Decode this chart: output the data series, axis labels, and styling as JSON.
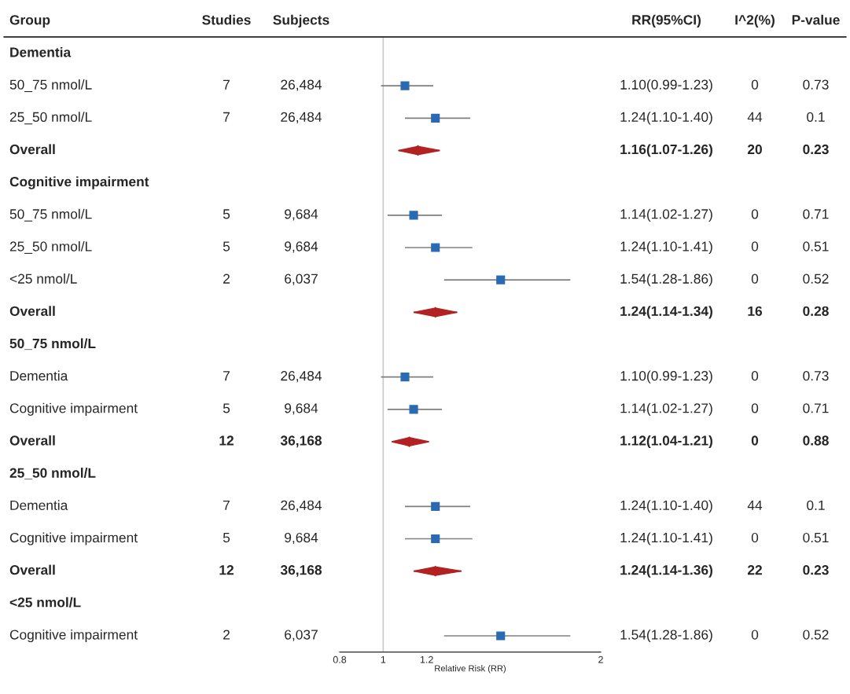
{
  "chart_data": [
    {
      "type": "other",
      "title": "Group",
      "categories": [
        "Dementia",
        "50_75 nmol/L",
        "25_50 nmol/L",
        "Overall",
        "Cognitive impairment",
        "50_75 nmol/L",
        "25_50 nmol/L",
        "<25 nmol/L",
        "Overall",
        "50_75 nmol/L",
        "Dementia",
        "Cognitive impairment",
        "Overall",
        "25_50 nmol/L",
        "Dementia",
        "Cognitive impairment",
        "Overall",
        "<25 nmol/L",
        "Cognitive impairment"
      ]
    },
    {
      "type": "other",
      "title": "Studies",
      "categories": [
        null,
        "7",
        "7",
        null,
        null,
        "5",
        "5",
        "2",
        null,
        null,
        "7",
        "5",
        "12",
        null,
        "7",
        "5",
        "12",
        null,
        "2"
      ]
    },
    {
      "type": "other",
      "title": "Subjects",
      "categories": [
        null,
        "26,484",
        "26,484",
        null,
        null,
        "9,684",
        "9,684",
        "6,037",
        null,
        null,
        "26,484",
        "9,684",
        "36,168",
        null,
        "26,484",
        "9,684",
        "36,168",
        null,
        "6,037"
      ]
    },
    {
      "type": "scatter",
      "orientation": "horizontal",
      "categories": [
        null,
        null,
        null,
        null,
        null,
        null,
        null,
        null,
        null,
        null,
        null,
        null,
        null,
        null,
        null,
        null,
        null,
        null,
        null
      ],
      "xlim": [
        0.8,
        2
      ],
      "xticks": [
        0.8,
        1,
        1.2,
        2
      ],
      "xlabel": "Relative Risk (RR)",
      "tick_labels": "x",
      "grid": false,
      "legend": false,
      "ref_lines": [
        {
          "axis": "x",
          "value": 1,
          "color": "#c8c8c8"
        }
      ],
      "series": [
        {
          "color": "#2a6ab3",
          "marker": "square",
          "values": [
            null,
            1.1,
            1.24,
            null,
            null,
            1.14,
            1.24,
            1.54,
            null,
            null,
            1.1,
            1.14,
            null,
            null,
            1.24,
            1.24,
            null,
            null,
            1.54
          ],
          "errors": [
            null,
            [
              0.99,
              1.23
            ],
            [
              1.1,
              1.4
            ],
            null,
            null,
            [
              1.02,
              1.27
            ],
            [
              1.1,
              1.41
            ],
            [
              1.28,
              1.86
            ],
            null,
            null,
            [
              0.99,
              1.23
            ],
            [
              1.02,
              1.27
            ],
            null,
            null,
            [
              1.1,
              1.4
            ],
            [
              1.1,
              1.41
            ],
            null,
            null,
            [
              1.28,
              1.86
            ]
          ]
        },
        {
          "color": "#b22222",
          "marker": "diamond",
          "values": [
            null,
            null,
            null,
            1.16,
            null,
            null,
            null,
            null,
            1.24,
            null,
            null,
            null,
            1.12,
            null,
            null,
            null,
            1.24,
            null,
            null
          ],
          "errors": [
            null,
            null,
            null,
            [
              1.07,
              1.26
            ],
            null,
            null,
            null,
            null,
            [
              1.14,
              1.34
            ],
            null,
            null,
            null,
            [
              1.04,
              1.21
            ],
            null,
            null,
            null,
            [
              1.14,
              1.36
            ],
            null,
            null
          ]
        }
      ]
    },
    {
      "type": "other",
      "title": "RR(95%CI)",
      "categories": [
        null,
        "1.10(0.99-1.23)",
        "1.24(1.10-1.40)",
        "1.16(1.07-1.26)",
        null,
        "1.14(1.02-1.27)",
        "1.24(1.10-1.41)",
        "1.54(1.28-1.86)",
        "1.24(1.14-1.34)",
        null,
        "1.10(0.99-1.23)",
        "1.14(1.02-1.27)",
        "1.12(1.04-1.21)",
        null,
        "1.24(1.10-1.40)",
        "1.24(1.10-1.41)",
        "1.24(1.14-1.36)",
        null,
        "1.54(1.28-1.86)"
      ]
    },
    {
      "type": "other",
      "title": "I^2(%)",
      "categories": [
        null,
        "0",
        "44",
        "20",
        null,
        "0",
        "0",
        "0",
        "16",
        null,
        "0",
        "0",
        "0",
        null,
        "44",
        "0",
        "22",
        null,
        "0"
      ]
    },
    {
      "type": "other",
      "title": "P-value",
      "categories": [
        null,
        "0.73",
        "0.1",
        "0.23",
        null,
        "0.71",
        "0.51",
        "0.52",
        "0.28",
        null,
        "0.73",
        "0.71",
        "0.88",
        null,
        "0.1",
        "0.51",
        "0.23",
        null,
        "0.52"
      ]
    }
  ]
}
